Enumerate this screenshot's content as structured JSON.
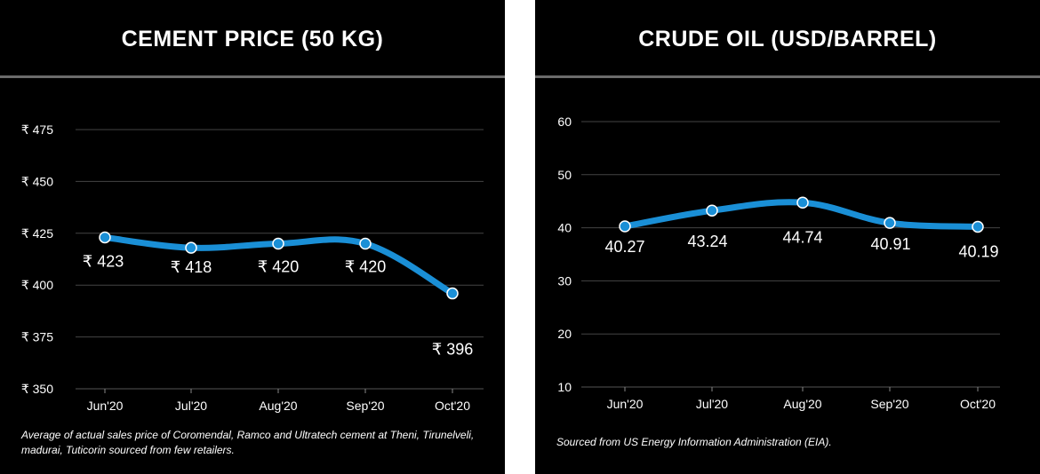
{
  "chart_data": [
    {
      "type": "line",
      "title": "CEMENT PRICE (50 KG)",
      "categories": [
        "Jun'20",
        "Jul'20",
        "Aug'20",
        "Sep'20",
        "Oct'20"
      ],
      "values": [
        423,
        418,
        420,
        420,
        396
      ],
      "data_labels": [
        "₹ 423",
        "₹ 418",
        "₹ 420",
        "₹ 420",
        "₹ 396"
      ],
      "y_ticks": [
        350,
        375,
        400,
        425,
        450,
        475
      ],
      "y_tick_labels": [
        "₹ 350",
        "₹ 375",
        "₹ 400",
        "₹ 425",
        "₹ 450",
        "₹ 475"
      ],
      "ylim": [
        350,
        475
      ],
      "grid": true,
      "line_color": "#1a8fd6",
      "footnote": "Average of actual sales price of Coromendal, Ramco and Ultratech cement at Theni, Tirunelveli, madurai, Tuticorin sourced from few retailers."
    },
    {
      "type": "line",
      "title": "CRUDE OIL (USD/BARREL)",
      "categories": [
        "Jun'20",
        "Jul'20",
        "Aug'20",
        "Sep'20",
        "Oct'20"
      ],
      "values": [
        40.27,
        43.24,
        44.74,
        40.91,
        40.19
      ],
      "data_labels": [
        "40.27",
        "43.24",
        "44.74",
        "40.91",
        "40.19"
      ],
      "y_ticks": [
        10,
        20,
        30,
        40,
        50,
        60
      ],
      "y_tick_labels": [
        "10",
        "20",
        "30",
        "40",
        "50",
        "60"
      ],
      "ylim": [
        10,
        60
      ],
      "grid": true,
      "line_color": "#1a8fd6",
      "footnote": "Sourced from US Energy Information Administration (EIA)."
    }
  ]
}
